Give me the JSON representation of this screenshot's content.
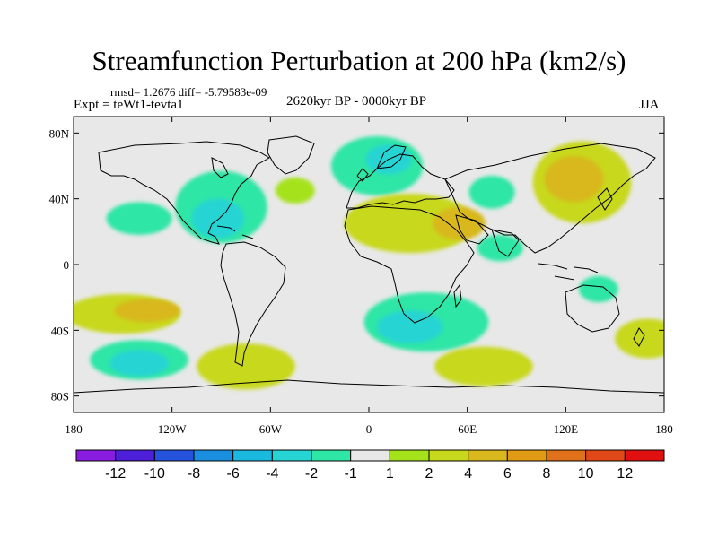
{
  "colors": {
    "ocean_bg": "#e8e8e8",
    "coast": "#000000",
    "levels": [
      "#8a1be0",
      "#4d1fd8",
      "#2553de",
      "#1a8fe0",
      "#1bb8e0",
      "#27d4d4",
      "#2ee6a6",
      "#e8e8e8",
      "#a6e21c",
      "#c8d81c",
      "#d8b81c",
      "#e09a16",
      "#e0701a",
      "#e04818",
      "#e01010"
    ]
  },
  "chart_data": {
    "type": "heatmap",
    "title": "Streamfunction Perturbation at 200 hPa (km2/s)",
    "stats_text": "rmsd= 1.2676 diff= -5.79583e-09",
    "experiment_text": "Expt = teWt1-tevta1",
    "period_text": "2620kyr BP - 0000kyr BP",
    "season_text": "JJA",
    "x_ticks": [
      "180",
      "120W",
      "60W",
      "0",
      "60E",
      "120E",
      "180"
    ],
    "x_tick_values": [
      -180,
      -120,
      -60,
      0,
      60,
      120,
      180
    ],
    "y_ticks": [
      "80N",
      "40N",
      "0",
      "40S",
      "80S"
    ],
    "y_tick_values": [
      80,
      40,
      0,
      -40,
      -80
    ],
    "xlim": [
      -180,
      180
    ],
    "ylim": [
      -90,
      90
    ],
    "colorbar_levels": [
      -12,
      -10,
      -8,
      -6,
      -4,
      -2,
      -1,
      1,
      2,
      4,
      6,
      8,
      10,
      12
    ],
    "colorbar_labels": [
      "-12",
      "-10",
      "-8",
      "-6",
      "-4",
      "-2",
      "-1",
      "1",
      "2",
      "4",
      "6",
      "8",
      "10",
      "12"
    ],
    "anomaly_features": [
      {
        "name": "north-atlantic-europe-low",
        "lon": 5,
        "lat": 60,
        "rx": 28,
        "ry": 18,
        "value": -2
      },
      {
        "name": "scandinavia-low-core",
        "lon": 12,
        "lat": 64,
        "rx": 14,
        "ry": 9,
        "value": -4
      },
      {
        "name": "north-america-low",
        "lon": -90,
        "lat": 35,
        "rx": 28,
        "ry": 22,
        "value": -2
      },
      {
        "name": "north-america-low-core",
        "lon": -92,
        "lat": 28,
        "rx": 16,
        "ry": 12,
        "value": -4
      },
      {
        "name": "north-atlantic-high",
        "lon": -45,
        "lat": 45,
        "rx": 12,
        "ry": 8,
        "value": 1
      },
      {
        "name": "east-asia-high",
        "lon": 130,
        "lat": 50,
        "rx": 30,
        "ry": 25,
        "value": 2
      },
      {
        "name": "east-asia-high-core",
        "lon": 125,
        "lat": 52,
        "rx": 18,
        "ry": 14,
        "value": 4
      },
      {
        "name": "north-africa-mideast-high",
        "lon": 25,
        "lat": 25,
        "rx": 40,
        "ry": 18,
        "value": 2
      },
      {
        "name": "arabia-high-core",
        "lon": 55,
        "lat": 25,
        "rx": 16,
        "ry": 10,
        "value": 4
      },
      {
        "name": "central-asia-low",
        "lon": 75,
        "lat": 44,
        "rx": 14,
        "ry": 10,
        "value": -2
      },
      {
        "name": "southern-africa-indian-low",
        "lon": 35,
        "lat": -35,
        "rx": 38,
        "ry": 18,
        "value": -2
      },
      {
        "name": "southern-africa-low-core",
        "lon": 25,
        "lat": -38,
        "rx": 20,
        "ry": 10,
        "value": -4
      },
      {
        "name": "south-pacific-high",
        "lon": -150,
        "lat": -30,
        "rx": 35,
        "ry": 12,
        "value": 2
      },
      {
        "name": "south-pacific-high-core",
        "lon": -135,
        "lat": -28,
        "rx": 20,
        "ry": 7,
        "value": 4
      },
      {
        "name": "south-pacific-low",
        "lon": -140,
        "lat": -58,
        "rx": 30,
        "ry": 12,
        "value": -2
      },
      {
        "name": "south-pacific-low-core",
        "lon": -140,
        "lat": -60,
        "rx": 18,
        "ry": 8,
        "value": -4
      },
      {
        "name": "south-america-southern-high",
        "lon": -75,
        "lat": -62,
        "rx": 30,
        "ry": 14,
        "value": 2
      },
      {
        "name": "southern-ocean-high",
        "lon": 70,
        "lat": -62,
        "rx": 30,
        "ry": 12,
        "value": 2
      },
      {
        "name": "pacific-tropical-low",
        "lon": -140,
        "lat": 28,
        "rx": 20,
        "ry": 10,
        "value": -2
      },
      {
        "name": "australia-east-low",
        "lon": 140,
        "lat": -15,
        "rx": 12,
        "ry": 8,
        "value": -2
      },
      {
        "name": "indian-ocean-low",
        "lon": 80,
        "lat": 10,
        "rx": 14,
        "ry": 8,
        "value": -2
      },
      {
        "name": "south-pacific-east-high",
        "lon": 170,
        "lat": -45,
        "rx": 20,
        "ry": 12,
        "value": 2
      }
    ]
  }
}
